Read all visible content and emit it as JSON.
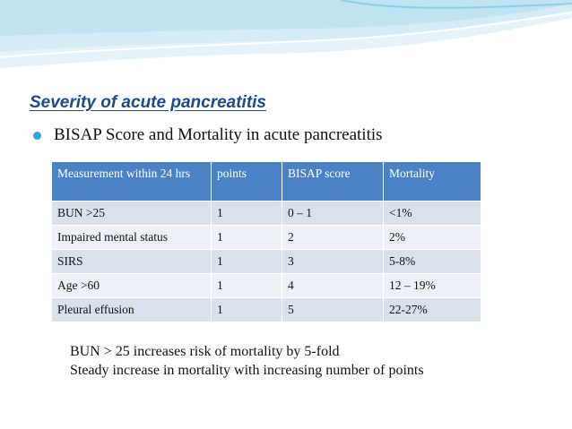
{
  "slide": {
    "title": "Severity of acute pancreatitis",
    "bullet": "BISAP Score and Mortality in acute pancreatitis",
    "table": {
      "headers": [
        "Measurement  within 24 hrs",
        "points",
        "BISAP score",
        "Mortality"
      ],
      "rows": [
        [
          "BUN >25",
          "1",
          "0 – 1",
          "<1%"
        ],
        [
          "Impaired mental status",
          "1",
          "2",
          "2%"
        ],
        [
          "SIRS",
          "1",
          "3",
          "5-8%"
        ],
        [
          "Age >60",
          "1",
          "4",
          "12 – 19%"
        ],
        [
          "Pleural effusion",
          "1",
          "5",
          "22-27%"
        ]
      ]
    },
    "notes": [
      "BUN > 25 increases risk of mortality by 5-fold",
      "Steady increase in mortality with increasing number of points"
    ]
  },
  "colors": {
    "title": "#1f4a8a",
    "bullet": "#2da8d8",
    "table_header": "#4a82c6",
    "row_odd": "#d9e1ee",
    "row_even": "#edf1f7",
    "band_light": "#dff1f8",
    "band_accent": "#7ec9e6"
  }
}
